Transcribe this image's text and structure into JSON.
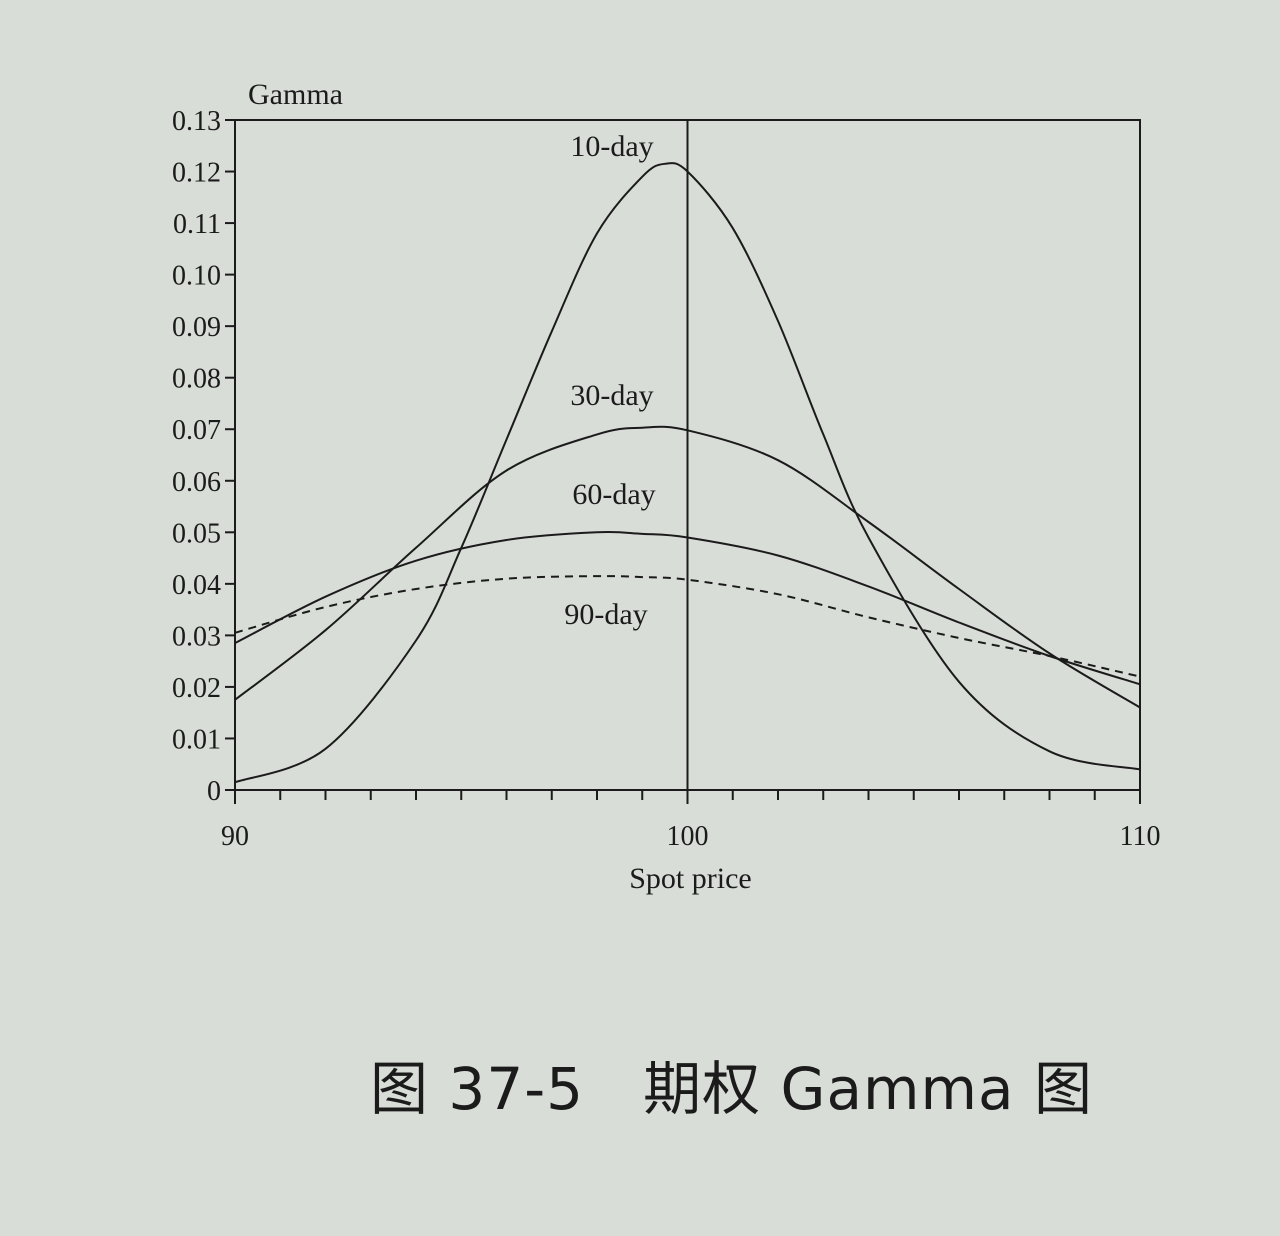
{
  "caption": "图 37-5　期权 Gamma 图",
  "chart_data": {
    "type": "line",
    "title": "",
    "xlabel": "Spot price",
    "ylabel": "Gamma",
    "xlim": [
      90,
      110
    ],
    "ylim": [
      0,
      0.13
    ],
    "x_ticks": [
      "90",
      "100",
      "110"
    ],
    "y_ticks": [
      "0",
      "0.01",
      "0.02",
      "0.03",
      "0.04",
      "0.05",
      "0.06",
      "0.07",
      "0.08",
      "0.09",
      "0.10",
      "0.11",
      "0.12",
      "0.13"
    ],
    "reference_line_x": 100,
    "grid": false,
    "legend": "inline labels",
    "series": [
      {
        "name": "10-day",
        "style": "solid",
        "x": [
          90,
          92,
          94,
          95,
          96,
          97,
          98,
          99,
          99.5,
          100,
          101,
          102,
          103,
          104,
          106,
          108,
          110
        ],
        "y": [
          0.0015,
          0.008,
          0.029,
          0.047,
          0.068,
          0.089,
          0.108,
          0.119,
          0.1215,
          0.12,
          0.109,
          0.091,
          0.069,
          0.049,
          0.021,
          0.0075,
          0.004
        ]
      },
      {
        "name": "30-day",
        "style": "solid",
        "x": [
          90,
          92,
          94,
          96,
          98,
          99,
          100,
          102,
          104,
          106,
          108,
          110
        ],
        "y": [
          0.0175,
          0.031,
          0.047,
          0.062,
          0.069,
          0.0703,
          0.0698,
          0.064,
          0.052,
          0.039,
          0.0265,
          0.016
        ]
      },
      {
        "name": "60-day",
        "style": "solid",
        "x": [
          90,
          92,
          94,
          96,
          98,
          99,
          100,
          102,
          104,
          106,
          108,
          110
        ],
        "y": [
          0.0285,
          0.0375,
          0.0445,
          0.0485,
          0.05,
          0.0497,
          0.049,
          0.0455,
          0.0395,
          0.0325,
          0.026,
          0.0205
        ]
      },
      {
        "name": "90-day",
        "style": "dashed",
        "x": [
          90,
          92,
          94,
          96,
          98,
          99,
          100,
          102,
          104,
          106,
          108,
          110
        ],
        "y": [
          0.0305,
          0.0355,
          0.039,
          0.041,
          0.0415,
          0.0413,
          0.0408,
          0.038,
          0.0335,
          0.0295,
          0.026,
          0.022
        ]
      }
    ]
  }
}
